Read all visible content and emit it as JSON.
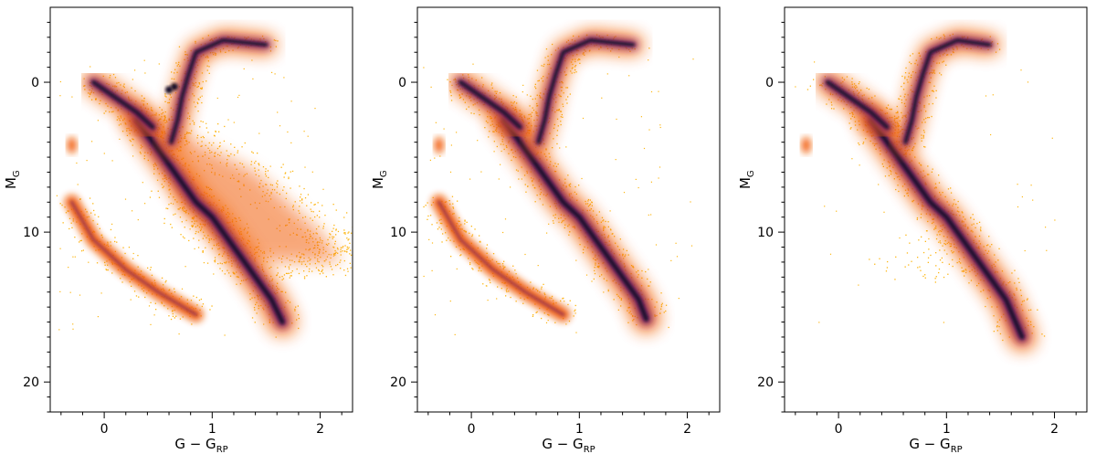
{
  "chart_data": [
    {
      "type": "heatmap",
      "panel": "left",
      "xlabel": "G − G",
      "xlabel_sub": "RP",
      "ylabel": "M",
      "ylabel_sub": "G",
      "xlim": [
        -0.5,
        2.3
      ],
      "ylim": [
        22,
        -5
      ],
      "y_inverted": true,
      "xticks": [
        0,
        1,
        2
      ],
      "yticks": [
        0,
        10,
        20
      ],
      "colormap": "inferno",
      "colors": {
        "high_density": "#120a2a",
        "mid_density": "#6b1f73",
        "low_density": "#f2600b",
        "sparse": "#fdb714"
      },
      "features": {
        "main_sequence": [
          [
            0.3,
            2.5
          ],
          [
            0.45,
            4.0
          ],
          [
            0.55,
            5.0
          ],
          [
            0.7,
            6.5
          ],
          [
            0.85,
            8.0
          ],
          [
            1.0,
            9.0
          ],
          [
            1.1,
            10.0
          ],
          [
            1.25,
            11.5
          ],
          [
            1.4,
            13.0
          ],
          [
            1.55,
            14.5
          ],
          [
            1.65,
            16.0
          ]
        ],
        "red_giant_branch": [
          [
            0.62,
            4.0
          ],
          [
            0.68,
            2.5
          ],
          [
            0.72,
            1.0
          ],
          [
            0.78,
            -0.5
          ],
          [
            0.85,
            -2.0
          ],
          [
            1.1,
            -2.8
          ],
          [
            1.5,
            -2.5
          ]
        ],
        "red_clump": [
          [
            0.6,
            0.5
          ],
          [
            0.65,
            0.3
          ]
        ],
        "white_dwarf_sequence": [
          [
            -0.3,
            8.0
          ],
          [
            -0.1,
            10.5
          ],
          [
            0.2,
            12.5
          ],
          [
            0.5,
            14.0
          ],
          [
            0.85,
            15.5
          ]
        ],
        "blue_horizontal_branch": [
          [
            -0.1,
            0.0
          ],
          [
            0.1,
            1.0
          ],
          [
            0.3,
            2.0
          ],
          [
            0.45,
            3.0
          ]
        ],
        "hot_subdwarfs": [
          [
            -0.3,
            4.2
          ]
        ],
        "scatter_region": [
          [
            0.6,
            3.0
          ],
          [
            1.4,
            6.0
          ],
          [
            2.0,
            10.0
          ],
          [
            2.2,
            12.0
          ],
          [
            1.3,
            12.0
          ],
          [
            0.7,
            8.0
          ]
        ]
      }
    },
    {
      "type": "heatmap",
      "panel": "middle",
      "xlabel": "G − G",
      "xlabel_sub": "RP",
      "ylabel": "M",
      "ylabel_sub": "G",
      "xlim": [
        -0.5,
        2.3
      ],
      "ylim": [
        22,
        -5
      ],
      "y_inverted": true,
      "xticks": [
        0,
        1,
        2
      ],
      "yticks": [
        0,
        10,
        20
      ],
      "colormap": "inferno",
      "features": {
        "main_sequence": [
          [
            0.3,
            2.5
          ],
          [
            0.45,
            4.0
          ],
          [
            0.55,
            5.0
          ],
          [
            0.7,
            6.5
          ],
          [
            0.85,
            8.0
          ],
          [
            1.0,
            9.0
          ],
          [
            1.1,
            10.0
          ],
          [
            1.25,
            11.5
          ],
          [
            1.4,
            13.0
          ],
          [
            1.55,
            14.5
          ],
          [
            1.62,
            15.8
          ]
        ],
        "red_giant_branch": [
          [
            0.62,
            4.0
          ],
          [
            0.68,
            2.5
          ],
          [
            0.72,
            1.0
          ],
          [
            0.78,
            -0.5
          ],
          [
            0.85,
            -2.0
          ],
          [
            1.1,
            -2.8
          ],
          [
            1.5,
            -2.5
          ]
        ],
        "white_dwarf_sequence": [
          [
            -0.3,
            8.0
          ],
          [
            -0.1,
            10.5
          ],
          [
            0.2,
            12.5
          ],
          [
            0.5,
            14.0
          ],
          [
            0.85,
            15.5
          ]
        ],
        "blue_horizontal_branch": [
          [
            -0.1,
            0.0
          ],
          [
            0.1,
            1.0
          ],
          [
            0.3,
            2.0
          ],
          [
            0.45,
            3.0
          ]
        ],
        "hot_subdwarfs": [
          [
            -0.3,
            4.2
          ]
        ]
      }
    },
    {
      "type": "heatmap",
      "panel": "right",
      "xlabel": "G − G",
      "xlabel_sub": "RP",
      "ylabel": "M",
      "ylabel_sub": "G",
      "xlim": [
        -0.5,
        2.3
      ],
      "ylim": [
        22,
        -5
      ],
      "y_inverted": true,
      "xticks": [
        0,
        1,
        2
      ],
      "yticks": [
        0,
        10,
        20
      ],
      "colormap": "inferno",
      "features": {
        "main_sequence": [
          [
            0.3,
            2.5
          ],
          [
            0.45,
            4.0
          ],
          [
            0.55,
            5.0
          ],
          [
            0.7,
            6.5
          ],
          [
            0.85,
            8.0
          ],
          [
            1.0,
            9.0
          ],
          [
            1.1,
            10.0
          ],
          [
            1.25,
            11.5
          ],
          [
            1.4,
            13.0
          ],
          [
            1.55,
            14.5
          ],
          [
            1.7,
            17.0
          ]
        ],
        "red_giant_branch": [
          [
            0.62,
            4.0
          ],
          [
            0.68,
            2.5
          ],
          [
            0.72,
            1.0
          ],
          [
            0.78,
            -0.5
          ],
          [
            0.85,
            -2.0
          ],
          [
            1.1,
            -2.8
          ],
          [
            1.4,
            -2.5
          ]
        ],
        "blue_horizontal_branch": [
          [
            -0.1,
            0.0
          ],
          [
            0.1,
            1.0
          ],
          [
            0.3,
            2.0
          ],
          [
            0.45,
            3.0
          ]
        ],
        "hot_subdwarfs": [
          [
            -0.3,
            4.2
          ]
        ],
        "sparse_scatter": [
          [
            0.8,
            10.5
          ],
          [
            1.2,
            12.0
          ],
          [
            0.4,
            12.5
          ]
        ]
      }
    }
  ]
}
